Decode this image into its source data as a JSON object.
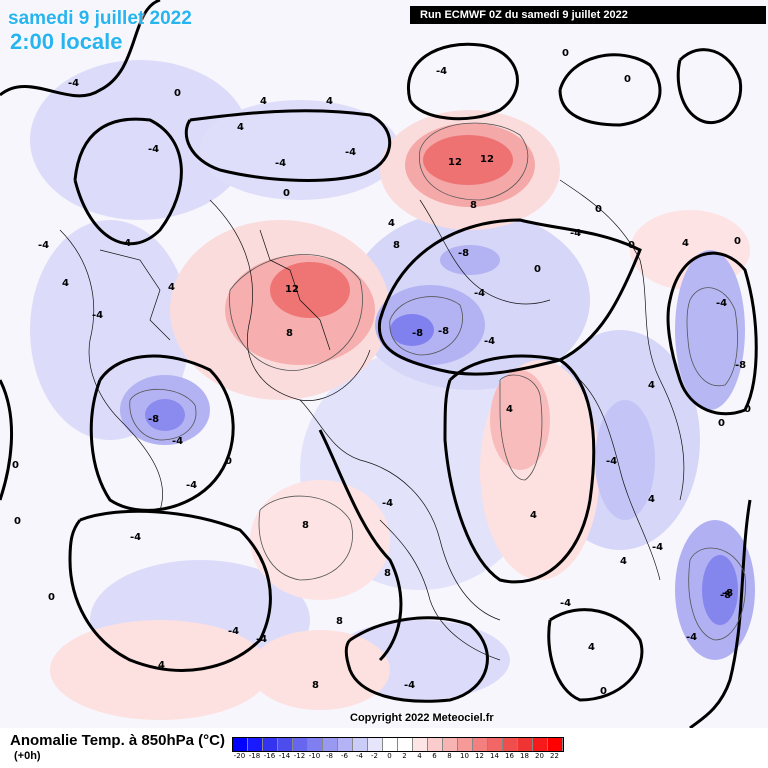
{
  "header": {
    "date": "samedi 9 juillet 2022",
    "time": "2:00 locale",
    "run": "Run ECMWF 0Z du samedi 9 juillet 2022"
  },
  "footer": {
    "title": "Anomalie Temp. à 850hPa (°C)",
    "subtitle": "(+0h)",
    "copyright": "Copyright 2022 Meteociel.fr"
  },
  "colorbar": {
    "labels": [
      "-20",
      "-18",
      "-16",
      "-14",
      "-12",
      "-10",
      "-8",
      "-6",
      "-4",
      "-2",
      "0",
      "2",
      "4",
      "6",
      "8",
      "10",
      "12",
      "14",
      "16",
      "18",
      "20",
      "22"
    ],
    "colors": [
      "#0000ff",
      "#1a1aff",
      "#3333f0",
      "#4d4dee",
      "#6666ee",
      "#7f7ff0",
      "#9999f2",
      "#b3b3f5",
      "#ccccf8",
      "#e5e5fc",
      "#ffffff",
      "#ffffff",
      "#fde5e5",
      "#fbcccc",
      "#f8b3b3",
      "#f69999",
      "#f47f7f",
      "#f26666",
      "#f04d4d",
      "#f03333",
      "#f81a1a",
      "#ff0000"
    ]
  },
  "map_labels": [
    "-4",
    "0",
    "4",
    "-4",
    "0",
    "4",
    "-4",
    "0",
    "-4",
    "4",
    "-4",
    "0",
    "12",
    "12",
    "8",
    "-4",
    "0",
    "0",
    "-4",
    "4",
    "-4",
    "8",
    "4",
    "-8",
    "-8",
    "-8",
    "4",
    "-4",
    "0",
    "12",
    "8",
    "-4",
    "-8",
    "-8",
    "-4",
    "4",
    "0",
    "-8",
    "-4",
    "4",
    "-4",
    "0",
    "8",
    "-4",
    "0",
    "4",
    "-4",
    "0",
    "-4",
    "4",
    "-8",
    "4",
    "-4",
    "-4",
    "0",
    "-4",
    "-4",
    "8",
    "-4",
    "8",
    "4",
    "4",
    "-4",
    "8",
    "-4",
    "0",
    "0",
    "0",
    "4"
  ],
  "colors": {
    "title": "#27b4ef",
    "warm_strong": "#f26b6b",
    "warm_light": "#fcd6d6",
    "cold_strong": "#7575ea",
    "cold_light": "#d7d7fa"
  }
}
